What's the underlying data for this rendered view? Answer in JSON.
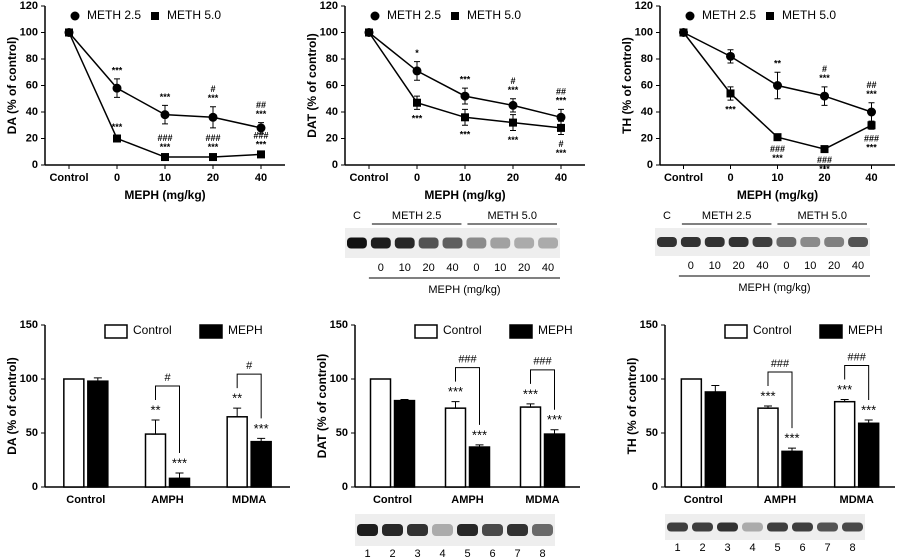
{
  "chart_data": [
    {
      "type": "line",
      "y_label": "DA (% of control)",
      "x_label": "MEPH (mg/kg)",
      "categories": [
        "Control",
        "0",
        "10",
        "20",
        "40"
      ],
      "ylim": [
        0,
        120
      ],
      "yticks": [
        0,
        20,
        40,
        60,
        80,
        100,
        120
      ],
      "series": [
        {
          "name": "METH 2.5",
          "color": "#000000",
          "marker": "circle",
          "annotation_position": "above",
          "values": [
            100,
            58,
            38,
            36,
            28
          ],
          "errors": [
            null,
            7,
            7,
            8,
            4
          ],
          "annotations": [
            null,
            [
              "***"
            ],
            [
              "***"
            ],
            [
              "#",
              "***"
            ],
            [
              "##",
              "***"
            ]
          ]
        },
        {
          "name": "METH 5.0",
          "color": "#000000",
          "marker": "square",
          "annotation_position": "above",
          "values": [
            100,
            20,
            6,
            6,
            8
          ],
          "errors": [
            null,
            2,
            1,
            1,
            1
          ],
          "annotations": [
            null,
            [
              "***"
            ],
            [
              "###",
              "***"
            ],
            [
              "###",
              "***"
            ],
            [
              "###",
              "***"
            ]
          ]
        }
      ]
    },
    {
      "type": "line",
      "y_label": "DAT (% of control)",
      "x_label": "MEPH (mg/kg)",
      "categories": [
        "Control",
        "0",
        "10",
        "20",
        "40"
      ],
      "ylim": [
        0,
        120
      ],
      "yticks": [
        0,
        20,
        40,
        60,
        80,
        100,
        120
      ],
      "series": [
        {
          "name": "METH 2.5",
          "color": "#000000",
          "marker": "circle",
          "annotation_position": "above",
          "values": [
            100,
            71,
            52,
            45,
            36
          ],
          "errors": [
            null,
            7,
            6,
            5,
            6
          ],
          "annotations": [
            null,
            [
              "*"
            ],
            [
              "***"
            ],
            [
              "#",
              "***"
            ],
            [
              "##",
              "***"
            ]
          ]
        },
        {
          "name": "METH 5.0",
          "color": "#000000",
          "marker": "square",
          "annotation_position": "below",
          "values": [
            100,
            47,
            36,
            32,
            28
          ],
          "errors": [
            null,
            5,
            6,
            6,
            5
          ],
          "annotations": [
            null,
            [
              "***"
            ],
            [
              "***"
            ],
            [
              "***"
            ],
            [
              "#",
              "***"
            ]
          ]
        }
      ]
    },
    {
      "type": "line",
      "y_label": "TH (% of control)",
      "x_label": "MEPH (mg/kg)",
      "categories": [
        "Control",
        "0",
        "10",
        "20",
        "40"
      ],
      "ylim": [
        0,
        120
      ],
      "yticks": [
        0,
        20,
        40,
        60,
        80,
        100,
        120
      ],
      "series": [
        {
          "name": "METH 2.5",
          "color": "#000000",
          "marker": "circle",
          "annotation_position": "above",
          "values": [
            100,
            82,
            60,
            52,
            40
          ],
          "errors": [
            null,
            5,
            10,
            7,
            7
          ],
          "annotations": [
            null,
            null,
            [
              "**"
            ],
            [
              "#",
              "***"
            ],
            [
              "##",
              "***"
            ]
          ]
        },
        {
          "name": "METH 5.0",
          "color": "#000000",
          "marker": "square",
          "annotation_position": "below",
          "values": [
            100,
            54,
            21,
            12,
            30
          ],
          "errors": [
            null,
            5,
            2,
            1,
            3
          ],
          "annotations": [
            null,
            [
              "***"
            ],
            [
              "###",
              "***"
            ],
            [
              "###",
              "***"
            ],
            [
              "###",
              "***"
            ]
          ]
        }
      ]
    },
    {
      "type": "bar",
      "y_label": "DA (% of control)",
      "categories": [
        "Control",
        "AMPH",
        "MDMA"
      ],
      "ylim": [
        0,
        150
      ],
      "yticks": [
        0,
        50,
        100,
        150
      ],
      "series": [
        {
          "name": "Control",
          "color": "#ffffff",
          "values": [
            100,
            49,
            65
          ],
          "errors": [
            null,
            13,
            8
          ],
          "annotations": [
            null,
            "**",
            "**"
          ]
        },
        {
          "name": "MEPH",
          "color": "#000000",
          "values": [
            98,
            8,
            42
          ],
          "errors": [
            3,
            5,
            3
          ],
          "annotations": [
            null,
            "***",
            "***"
          ]
        }
      ],
      "comparison_labels": [
        null,
        "#",
        "#"
      ]
    },
    {
      "type": "bar",
      "y_label": "DAT (% of control)",
      "categories": [
        "Control",
        "AMPH",
        "MDMA"
      ],
      "ylim": [
        0,
        150
      ],
      "yticks": [
        0,
        50,
        100,
        150
      ],
      "series": [
        {
          "name": "Control",
          "color": "#ffffff",
          "values": [
            100,
            73,
            74
          ],
          "errors": [
            null,
            6,
            3
          ],
          "annotations": [
            null,
            "***",
            "***"
          ]
        },
        {
          "name": "MEPH",
          "color": "#000000",
          "values": [
            80,
            37,
            49
          ],
          "errors": [
            1,
            2,
            4
          ],
          "annotations": [
            null,
            "***",
            "***"
          ]
        }
      ],
      "comparison_labels": [
        null,
        "###",
        "###"
      ]
    },
    {
      "type": "bar",
      "y_label": "TH (% of control)",
      "categories": [
        "Control",
        "AMPH",
        "MDMA"
      ],
      "ylim": [
        0,
        150
      ],
      "yticks": [
        0,
        50,
        100,
        150
      ],
      "series": [
        {
          "name": "Control",
          "color": "#ffffff",
          "values": [
            100,
            73,
            79
          ],
          "errors": [
            null,
            2,
            2
          ],
          "annotations": [
            null,
            "***",
            "***"
          ]
        },
        {
          "name": "MEPH",
          "color": "#000000",
          "values": [
            88,
            33,
            59
          ],
          "errors": [
            6,
            3,
            3
          ],
          "annotations": [
            null,
            "***",
            "***"
          ]
        }
      ],
      "comparison_labels": [
        null,
        "###",
        "###"
      ]
    }
  ],
  "blots": [
    {
      "groups": [
        "C",
        "METH 2.5",
        "METH 5.0"
      ],
      "lanes": [
        "0",
        "10",
        "20",
        "40",
        "0",
        "10",
        "20",
        "40"
      ],
      "axis_label": "MEPH (mg/kg)"
    },
    {
      "groups": [
        "C",
        "METH 2.5",
        "METH 5.0"
      ],
      "lanes": [
        "0",
        "10",
        "20",
        "40",
        "0",
        "10",
        "20",
        "40"
      ],
      "axis_label": "MEPH (mg/kg)"
    },
    {
      "lanes": [
        "1",
        "2",
        "3",
        "4",
        "5",
        "6",
        "7",
        "8"
      ]
    },
    {
      "lanes": [
        "1",
        "2",
        "3",
        "4",
        "5",
        "6",
        "7",
        "8"
      ]
    }
  ]
}
